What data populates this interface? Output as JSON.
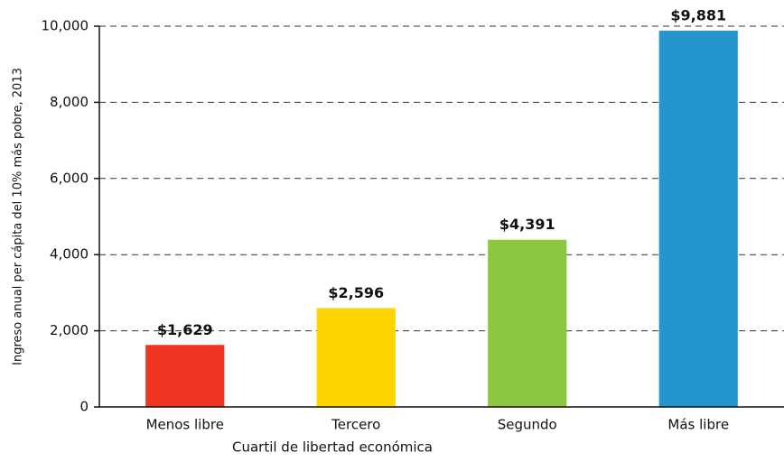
{
  "chart_data": {
    "type": "bar",
    "xlabel": "Cuartil de libertad económica",
    "ylabel": "Ingreso anual per cápita del 10% más pobre, 2013",
    "categories": [
      "Menos libre",
      "Tercero",
      "Segundo",
      "Más libre"
    ],
    "values": [
      1629,
      2596,
      4391,
      9881
    ],
    "value_labels": [
      "$1,629",
      "$2,596",
      "$4,391",
      "$9,881"
    ],
    "colors": [
      "#ee3524",
      "#fcd500",
      "#8dc63f",
      "#2596cd"
    ],
    "ylim": [
      0,
      10000
    ],
    "yticks": [
      0,
      {
        "value": 2000,
        "label": "2,000"
      },
      {
        "value": 4000,
        "label": "4,000"
      },
      {
        "value": 6000,
        "label": "6,000"
      },
      {
        "value": 8000,
        "label": "8,000"
      },
      {
        "value": 10000,
        "label": "10,000"
      }
    ],
    "grid": true
  }
}
